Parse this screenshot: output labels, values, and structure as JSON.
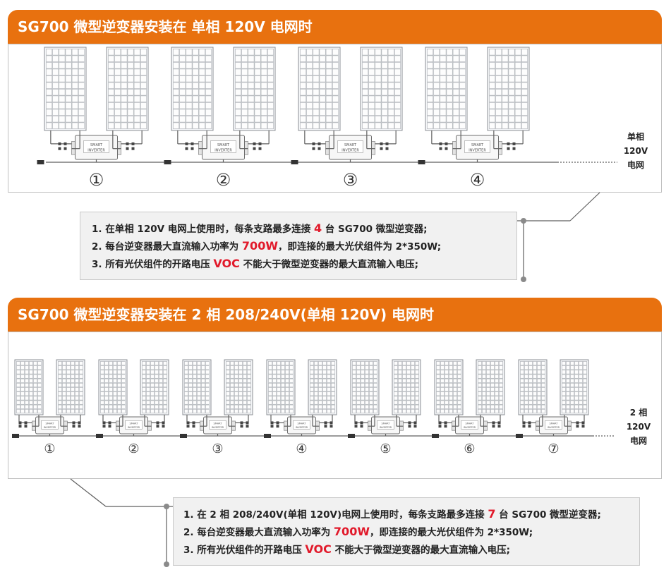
{
  "section1": {
    "title": "SG700 微型逆变器安装在 单相 120V 电网时",
    "units": [
      "①",
      "②",
      "③",
      "④"
    ],
    "inverter_text": [
      "SMART",
      "INVERTER"
    ],
    "grid_label": [
      "单相",
      "120V",
      "电网"
    ],
    "notes": {
      "line1": {
        "a": "1. 在单相 120V 电网上使用时，每条支路最多连接 ",
        "num": "4",
        "b": " 台 SG700 微型逆变器;"
      },
      "line2": {
        "a": "2. 每台逆变器最大直流输入功率为 ",
        "num": "700W",
        "b": "，即连接的最大光伏组件为 2*350W;"
      },
      "line3": {
        "a": "3. 所有光伏组件的开路电压 ",
        "num": "VOC",
        "b": " 不能大于微型逆变器的最大直流输入电压;"
      }
    }
  },
  "section2": {
    "title": "SG700 微型逆变器安装在 2 相 208/240V(单相 120V)  电网时",
    "units": [
      "①",
      "②",
      "③",
      "④",
      "⑤",
      "⑥",
      "⑦"
    ],
    "inverter_text": [
      "SMART",
      "INVERTER"
    ],
    "grid_label": [
      "2 相",
      "120V",
      "电网"
    ],
    "notes": {
      "line1": {
        "a": "1. 在 2 相 208/240V(单相 120V)电网上使用时，每条支路最多连接 ",
        "num": "7",
        "b": " 台 SG700 微型逆变器;"
      },
      "line2": {
        "a": "2. 每台逆变器最大直流输入功率为 ",
        "num": "700W",
        "b": "，即连接的最大光伏组件为 2*350W;"
      },
      "line3": {
        "a": "3. 所有光伏组件的开路电压 ",
        "num": "VOC",
        "b": " 不能大于微型逆变器的最大直流输入电压;"
      }
    }
  },
  "colors": {
    "header": "#e8710f",
    "highlight": "#e1192a"
  }
}
